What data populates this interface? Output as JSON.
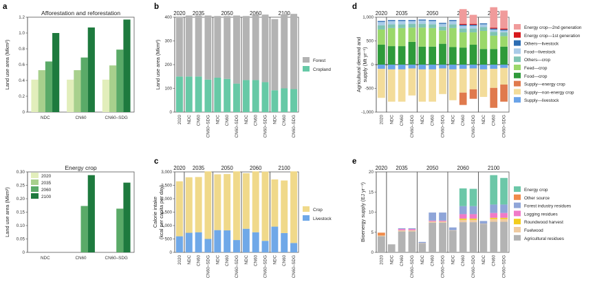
{
  "colors": {
    "y2020": "#e2eebb",
    "y2035": "#a8d08d",
    "y2060": "#5aaa68",
    "y2100": "#1e7a3e",
    "forest": "#b3b3b3",
    "cropland": "#66c9a6",
    "crop_cal": "#f0d98a",
    "livestock_cal": "#6fa8e8",
    "e2nd": "#f09b9b",
    "e1st": "#d7191c",
    "oth_live": "#2c6db3",
    "food_live": "#a9cbe8",
    "oth_crop": "#7fc4b3",
    "feed_crop": "#9bd86a",
    "food_crop": "#2e9a3a",
    "sup_energy": "#e07a4d",
    "sup_nonenergy": "#f3dc9a",
    "sup_live": "#6aa3e8",
    "b_energy": "#6cc7a8",
    "b_other": "#f08a4a",
    "b_forest": "#8fa5d8",
    "b_logging": "#f07ac8",
    "b_round": "#f2cc1c",
    "b_fuel": "#f0cba0",
    "b_agri": "#b3b3b3"
  },
  "panels": {
    "a": {
      "label": "a"
    },
    "b": {
      "label": "b"
    },
    "c": {
      "label": "c"
    },
    "d": {
      "label": "d"
    },
    "e": {
      "label": "e"
    }
  },
  "chart_data": [
    {
      "id": "a_top",
      "type": "bar",
      "title": "Afforestation and reforestation",
      "ylabel": "Land use area (Mkm²)",
      "categories": [
        "NDC",
        "CN60",
        "CN60–SDG"
      ],
      "ylim": [
        0,
        1.2
      ],
      "yticks": [
        "0",
        "0.2",
        "0.4",
        "0.6",
        "0.8",
        "1.0",
        "1.2"
      ],
      "series": [
        {
          "name": "2020",
          "values": [
            0.41,
            0.41,
            0.41
          ]
        },
        {
          "name": "2035",
          "values": [
            0.53,
            0.53,
            0.59
          ]
        },
        {
          "name": "2060",
          "values": [
            0.64,
            0.69,
            0.79
          ]
        },
        {
          "name": "2100",
          "values": [
            1.0,
            1.07,
            1.17
          ]
        }
      ]
    },
    {
      "id": "a_bottom",
      "type": "bar",
      "title": "Energy crop",
      "ylabel": "Land use area (Mkm²)",
      "categories": [
        "NDC",
        "CN60",
        "CN60–SDG"
      ],
      "ylim": [
        0,
        0.3
      ],
      "yticks": [
        "0",
        "0.05",
        "0.10",
        "0.15",
        "0.20",
        "0.25",
        "0.30"
      ],
      "legend": [
        "2020",
        "2035",
        "2060",
        "2100"
      ],
      "series": [
        {
          "name": "2020",
          "values": [
            0,
            0,
            0
          ]
        },
        {
          "name": "2035",
          "values": [
            0,
            0,
            0
          ]
        },
        {
          "name": "2060",
          "values": [
            0,
            0.173,
            0.163
          ]
        },
        {
          "name": "2100",
          "values": [
            0,
            0.288,
            0.26
          ]
        }
      ]
    },
    {
      "id": "b",
      "type": "bar",
      "ylabel": "Land use area (Mkm²)",
      "groups": [
        "2020",
        "2035",
        "2050",
        "2060",
        "2100"
      ],
      "categories": [
        "2020",
        "NDC",
        "CN60",
        "CN60–SDG",
        "NDC",
        "CN60",
        "CN60–SDG",
        "NDC",
        "CN60",
        "CN60–SDG",
        "NDC",
        "CN60",
        "CN60–SDG"
      ],
      "ylim": [
        0,
        400
      ],
      "yticks": [
        "0",
        "100",
        "200",
        "300",
        "400"
      ],
      "legend": [
        "Forest",
        "Cropland"
      ],
      "series": [
        {
          "name": "Cropland",
          "values": [
            150,
            150,
            150,
            137,
            145,
            140,
            120,
            135,
            135,
            126,
            92,
            100,
            97
          ]
        },
        {
          "name": "Forest",
          "values": [
            247,
            257,
            257,
            270,
            260,
            265,
            287,
            270,
            275,
            285,
            300,
            312,
            317
          ]
        }
      ]
    },
    {
      "id": "c",
      "type": "bar",
      "ylabel": "Calorie intake (kcal per capita per day)",
      "groups": [
        "2020",
        "2035",
        "2050",
        "2060",
        "2100"
      ],
      "categories": [
        "2020",
        "NDC",
        "CN60",
        "CN60–SDG",
        "NDC",
        "CN60",
        "CN60–SDG",
        "NDC",
        "CN60",
        "CN60–SDG",
        "NDC",
        "CN60",
        "CN60–SDG"
      ],
      "ylim": [
        0,
        3000
      ],
      "yticks": [
        "0",
        "500",
        "1,000",
        "1,500",
        "2,000",
        "2,500",
        "3,000"
      ],
      "legend": [
        "Crop",
        "Livestock"
      ],
      "series": [
        {
          "name": "Livestock",
          "values": [
            600,
            730,
            750,
            500,
            830,
            820,
            460,
            880,
            750,
            430,
            960,
            720,
            350
          ]
        },
        {
          "name": "Crop",
          "values": [
            2050,
            2070,
            2060,
            2520,
            2080,
            2100,
            2560,
            2070,
            2270,
            2580,
            1760,
            1960,
            2670
          ]
        }
      ]
    },
    {
      "id": "d",
      "type": "bar",
      "ylabel": "Agricultural demand and supply (Mt yr⁻¹)",
      "groups": [
        "2020",
        "2035",
        "2050",
        "2060",
        "2100"
      ],
      "categories": [
        "2020",
        "NDC",
        "CN60",
        "CN60–SDG",
        "NDC",
        "CN60",
        "CN60–SDG",
        "NDC",
        "CN60",
        "CN60–SDG",
        "NDC",
        "CN60",
        "CN60–SDG"
      ],
      "ylim": [
        -1000,
        1000
      ],
      "yticks": [
        "-1,000",
        "-500",
        "0",
        "500",
        "1,000"
      ],
      "legend": [
        "Energy crop—2nd generation",
        "Energy crop—1st generation",
        "Others—livestock",
        "Food—livestock",
        "Others—crop",
        "Feed—crop",
        "Food—crop",
        "Supply—energy crop",
        "Supply—non-energy crop",
        "Supply—livestock"
      ],
      "series": [
        {
          "name": "Food—crop",
          "values": [
            420,
            390,
            390,
            480,
            380,
            380,
            440,
            370,
            360,
            420,
            330,
            330,
            380
          ]
        },
        {
          "name": "Feed—crop",
          "values": [
            320,
            380,
            380,
            300,
            400,
            390,
            280,
            400,
            320,
            260,
            380,
            280,
            220
          ]
        },
        {
          "name": "Others—crop",
          "values": [
            90,
            80,
            80,
            80,
            80,
            80,
            80,
            80,
            80,
            80,
            80,
            80,
            80
          ]
        },
        {
          "name": "Food—livestock",
          "values": [
            70,
            70,
            70,
            60,
            70,
            70,
            60,
            70,
            60,
            60,
            60,
            50,
            40
          ]
        },
        {
          "name": "Others—livestock",
          "values": [
            20,
            20,
            20,
            20,
            20,
            20,
            20,
            20,
            20,
            20,
            20,
            20,
            20
          ]
        },
        {
          "name": "Energy crop—1st generation",
          "values": [
            0,
            0,
            0,
            0,
            0,
            0,
            0,
            0,
            20,
            20,
            0,
            20,
            20
          ]
        },
        {
          "name": "Energy crop—2nd generation",
          "values": [
            0,
            0,
            0,
            0,
            0,
            0,
            0,
            0,
            310,
            190,
            0,
            430,
            380
          ]
        },
        {
          "name": "Supply—livestock",
          "values": [
            -90,
            -100,
            -100,
            -80,
            -100,
            -100,
            -80,
            -100,
            -90,
            -80,
            -100,
            -90,
            -70
          ]
        },
        {
          "name": "Supply—non-energy crop",
          "values": [
            -610,
            -680,
            -680,
            -570,
            -680,
            -680,
            -540,
            -650,
            -500,
            -440,
            -580,
            -400,
            -350
          ]
        },
        {
          "name": "Supply—energy crop",
          "values": [
            0,
            0,
            0,
            0,
            0,
            0,
            0,
            0,
            -260,
            -200,
            0,
            -420,
            -360
          ]
        }
      ]
    },
    {
      "id": "e",
      "type": "bar",
      "ylabel": "Bioenergy supply (EJ yr⁻¹)",
      "groups": [
        "2020",
        "2035",
        "2050",
        "2060",
        "2100"
      ],
      "categories": [
        "2020",
        "NDC",
        "CN60",
        "CN60–SDG",
        "NDC",
        "CN60",
        "CN60–SDG",
        "NDC",
        "CN60",
        "CN60–SDG",
        "NDC",
        "CN60",
        "CN60–SDG"
      ],
      "ylim": [
        0,
        20
      ],
      "yticks": [
        "0",
        "5",
        "10",
        "15",
        "20"
      ],
      "legend": [
        "Energy crop",
        "Other source",
        "Forest industry residues",
        "Logging residues",
        "Roundwood harvest",
        "Fuelwood",
        "Agricultural residues"
      ],
      "series": [
        {
          "name": "Agricultural residues",
          "values": [
            4.0,
            2.0,
            5.2,
            5.2,
            2.2,
            7.4,
            7.4,
            5.4,
            7.5,
            7.5,
            7.0,
            7.6,
            7.6
          ]
        },
        {
          "name": "Fuelwood",
          "values": [
            0.2,
            0.0,
            0.3,
            0.3,
            0.1,
            0.3,
            0.3,
            0.1,
            0.6,
            0.6,
            0.1,
            0.7,
            0.7
          ]
        },
        {
          "name": "Roundwood harvest",
          "values": [
            0,
            0,
            0,
            0,
            0,
            0,
            0,
            0,
            0.3,
            0.3,
            0,
            0.3,
            0.3
          ]
        },
        {
          "name": "Logging residues",
          "values": [
            0,
            0,
            0.3,
            0.3,
            0,
            0.2,
            0.2,
            0,
            1.1,
            1.1,
            0,
            1.2,
            1.2
          ]
        },
        {
          "name": "Forest industry residues",
          "values": [
            0,
            0,
            0.2,
            0.2,
            0.3,
            2.0,
            2.0,
            0.7,
            2.0,
            2.0,
            0.7,
            2.1,
            2.1
          ]
        },
        {
          "name": "Other source",
          "values": [
            0.7,
            0,
            0,
            0,
            0,
            0,
            0,
            0,
            0,
            0,
            0,
            0,
            0
          ]
        },
        {
          "name": "Energy crop",
          "values": [
            0,
            0,
            0,
            0,
            0,
            0,
            0,
            0,
            4.4,
            4.3,
            0,
            7.3,
            6.6
          ]
        }
      ]
    }
  ]
}
